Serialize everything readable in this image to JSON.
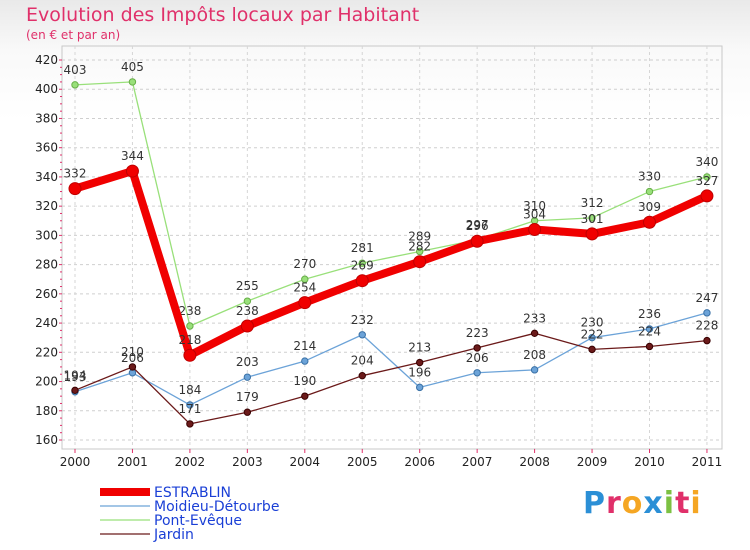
{
  "chart_data": {
    "type": "line",
    "title": "Evolution des Impôts locaux par Habitant",
    "subtitle": "(en € et par an)",
    "xlabel": "",
    "ylabel": "",
    "x": [
      "2000",
      "2001",
      "2002",
      "2003",
      "2004",
      "2005",
      "2006",
      "2007",
      "2008",
      "2009",
      "2010",
      "2011"
    ],
    "ylim": [
      160,
      420
    ],
    "yticks": [
      "160",
      "180",
      "200",
      "220",
      "240",
      "260",
      "280",
      "300",
      "320",
      "340",
      "360",
      "380",
      "400",
      "420"
    ],
    "grid": true,
    "legend_position": "bottom-left",
    "series": [
      {
        "name": "ESTRABLIN",
        "color": "#f00000",
        "values": [
          332,
          344,
          218,
          238,
          254,
          269,
          282,
          296,
          304,
          301,
          309,
          327
        ]
      },
      {
        "name": "Moidieu-Détourbe",
        "color": "#6ca3d8",
        "values": [
          193,
          206,
          184,
          203,
          214,
          232,
          196,
          206,
          208,
          230,
          236,
          247
        ]
      },
      {
        "name": "Pont-Evêque",
        "color": "#99e07a",
        "values": [
          403,
          405,
          238,
          255,
          270,
          281,
          289,
          297,
          310,
          312,
          330,
          340
        ]
      },
      {
        "name": "Jardin",
        "color": "#6b1a1a",
        "values": [
          194,
          210,
          171,
          179,
          190,
          204,
          213,
          223,
          233,
          222,
          224,
          228
        ]
      }
    ]
  },
  "logo": {
    "letters": [
      "P",
      "r",
      "o",
      "x",
      "i",
      "t",
      "i"
    ],
    "colors": [
      "#2b8fd6",
      "#e0306a",
      "#f5a623",
      "#2b8fd6",
      "#7cc142",
      "#e0306a",
      "#f5a623"
    ]
  }
}
